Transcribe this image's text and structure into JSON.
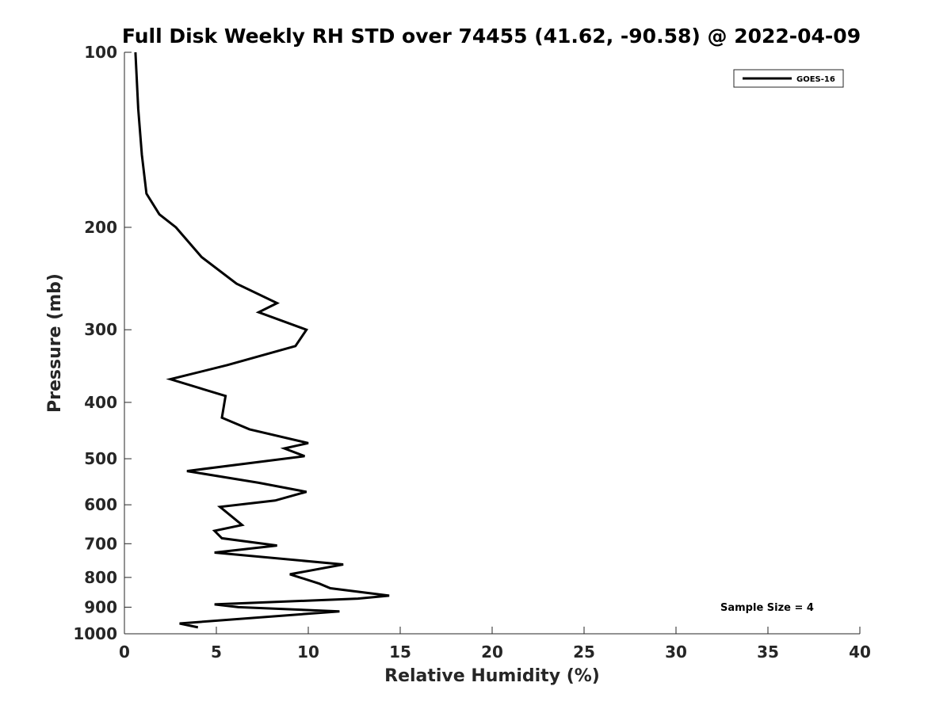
{
  "chart_data": {
    "type": "line",
    "title": "Full Disk Weekly RH STD over 74455 (41.62, -90.58) @ 2022-04-09",
    "xlabel": "Relative Humidity (%)",
    "ylabel": "Pressure (mb)",
    "xlim": [
      0,
      40
    ],
    "ylim": [
      100,
      1000
    ],
    "yscale": "log",
    "y_reversed": true,
    "x_ticks": [
      "0",
      "5",
      "10",
      "15",
      "20",
      "25",
      "30",
      "35",
      "40"
    ],
    "y_ticks": [
      "100",
      "200",
      "300",
      "400",
      "500",
      "600",
      "700",
      "800",
      "900",
      "1000"
    ],
    "grid": false,
    "legend_position": "top-right",
    "annotation": "Sample Size = 4",
    "series": [
      {
        "name": "GOES-16",
        "color": "#000000",
        "points": [
          [
            0.6,
            100
          ],
          [
            0.75,
            125
          ],
          [
            0.95,
            150
          ],
          [
            1.2,
            175
          ],
          [
            1.9,
            190
          ],
          [
            2.8,
            200
          ],
          [
            4.2,
            225
          ],
          [
            6.1,
            250
          ],
          [
            8.3,
            270
          ],
          [
            7.3,
            280
          ],
          [
            9.9,
            300
          ],
          [
            9.3,
            320
          ],
          [
            5.6,
            345
          ],
          [
            2.5,
            365
          ],
          [
            5.5,
            390
          ],
          [
            5.3,
            425
          ],
          [
            6.8,
            445
          ],
          [
            10.0,
            470
          ],
          [
            8.7,
            480
          ],
          [
            9.8,
            495
          ],
          [
            3.4,
            525
          ],
          [
            7.3,
            550
          ],
          [
            9.9,
            570
          ],
          [
            8.2,
            590
          ],
          [
            5.2,
            605
          ],
          [
            6.4,
            650
          ],
          [
            4.9,
            665
          ],
          [
            5.3,
            685
          ],
          [
            8.3,
            705
          ],
          [
            4.9,
            725
          ],
          [
            11.9,
            760
          ],
          [
            9.0,
            790
          ],
          [
            10.6,
            820
          ],
          [
            11.2,
            835
          ],
          [
            14.4,
            860
          ],
          [
            12.7,
            870
          ],
          [
            4.9,
            890
          ],
          [
            6.2,
            900
          ],
          [
            11.7,
            915
          ],
          [
            3.0,
            960
          ],
          [
            4.0,
            975
          ]
        ]
      }
    ]
  }
}
